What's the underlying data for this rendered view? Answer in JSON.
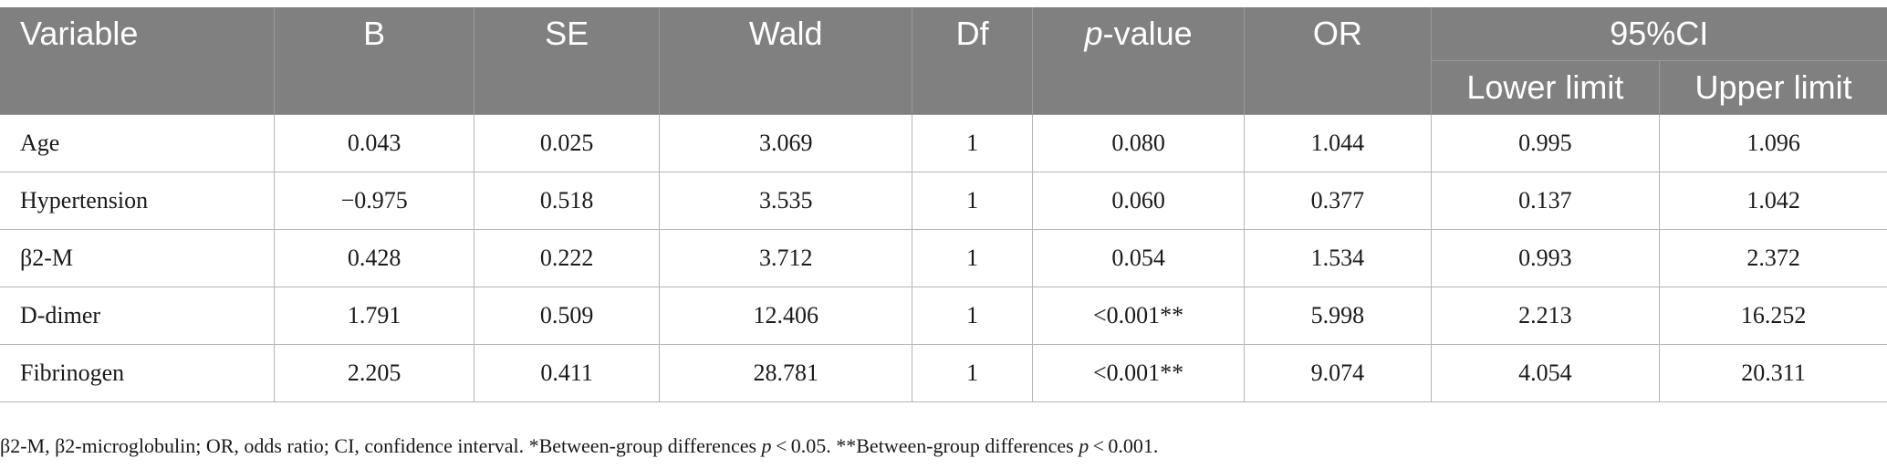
{
  "table": {
    "headers": {
      "variable": "Variable",
      "b": "B",
      "se": "SE",
      "wald": "Wald",
      "df": "Df",
      "p_italic": "p",
      "p_rest": "-value",
      "or": "OR",
      "ci": "95%CI",
      "lower": "Lower limit",
      "upper": "Upper limit"
    },
    "rows": [
      {
        "variable": "Age",
        "b": "0.043",
        "se": "0.025",
        "wald": "3.069",
        "df": "1",
        "p": "0.080",
        "or": "1.044",
        "lower": "0.995",
        "upper": "1.096"
      },
      {
        "variable": "Hypertension",
        "b": "−0.975",
        "se": "0.518",
        "wald": "3.535",
        "df": "1",
        "p": "0.060",
        "or": "0.377",
        "lower": "0.137",
        "upper": "1.042"
      },
      {
        "variable": "β2-M",
        "b": "0.428",
        "se": "0.222",
        "wald": "3.712",
        "df": "1",
        "p": "0.054",
        "or": "1.534",
        "lower": "0.993",
        "upper": "2.372"
      },
      {
        "variable": "D-dimer",
        "b": "1.791",
        "se": "0.509",
        "wald": "12.406",
        "df": "1",
        "p": "<0.001**",
        "or": "5.998",
        "lower": "2.213",
        "upper": "16.252"
      },
      {
        "variable": "Fibrinogen",
        "b": "2.205",
        "se": "0.411",
        "wald": "28.781",
        "df": "1",
        "p": "<0.001**",
        "or": "9.074",
        "lower": "4.054",
        "upper": "20.311"
      }
    ]
  },
  "footnote": {
    "part1": "β2-M, β2-microglobulin; OR, odds ratio; CI, confidence interval. *Between-group differences ",
    "p1": "p",
    "part2": " < 0.05. **Between-group differences ",
    "p2": "p",
    "part3": " < 0.001."
  },
  "colors": {
    "header_bg": "#808080",
    "header_text": "#ffffff",
    "grid": "#b5b5b5"
  }
}
